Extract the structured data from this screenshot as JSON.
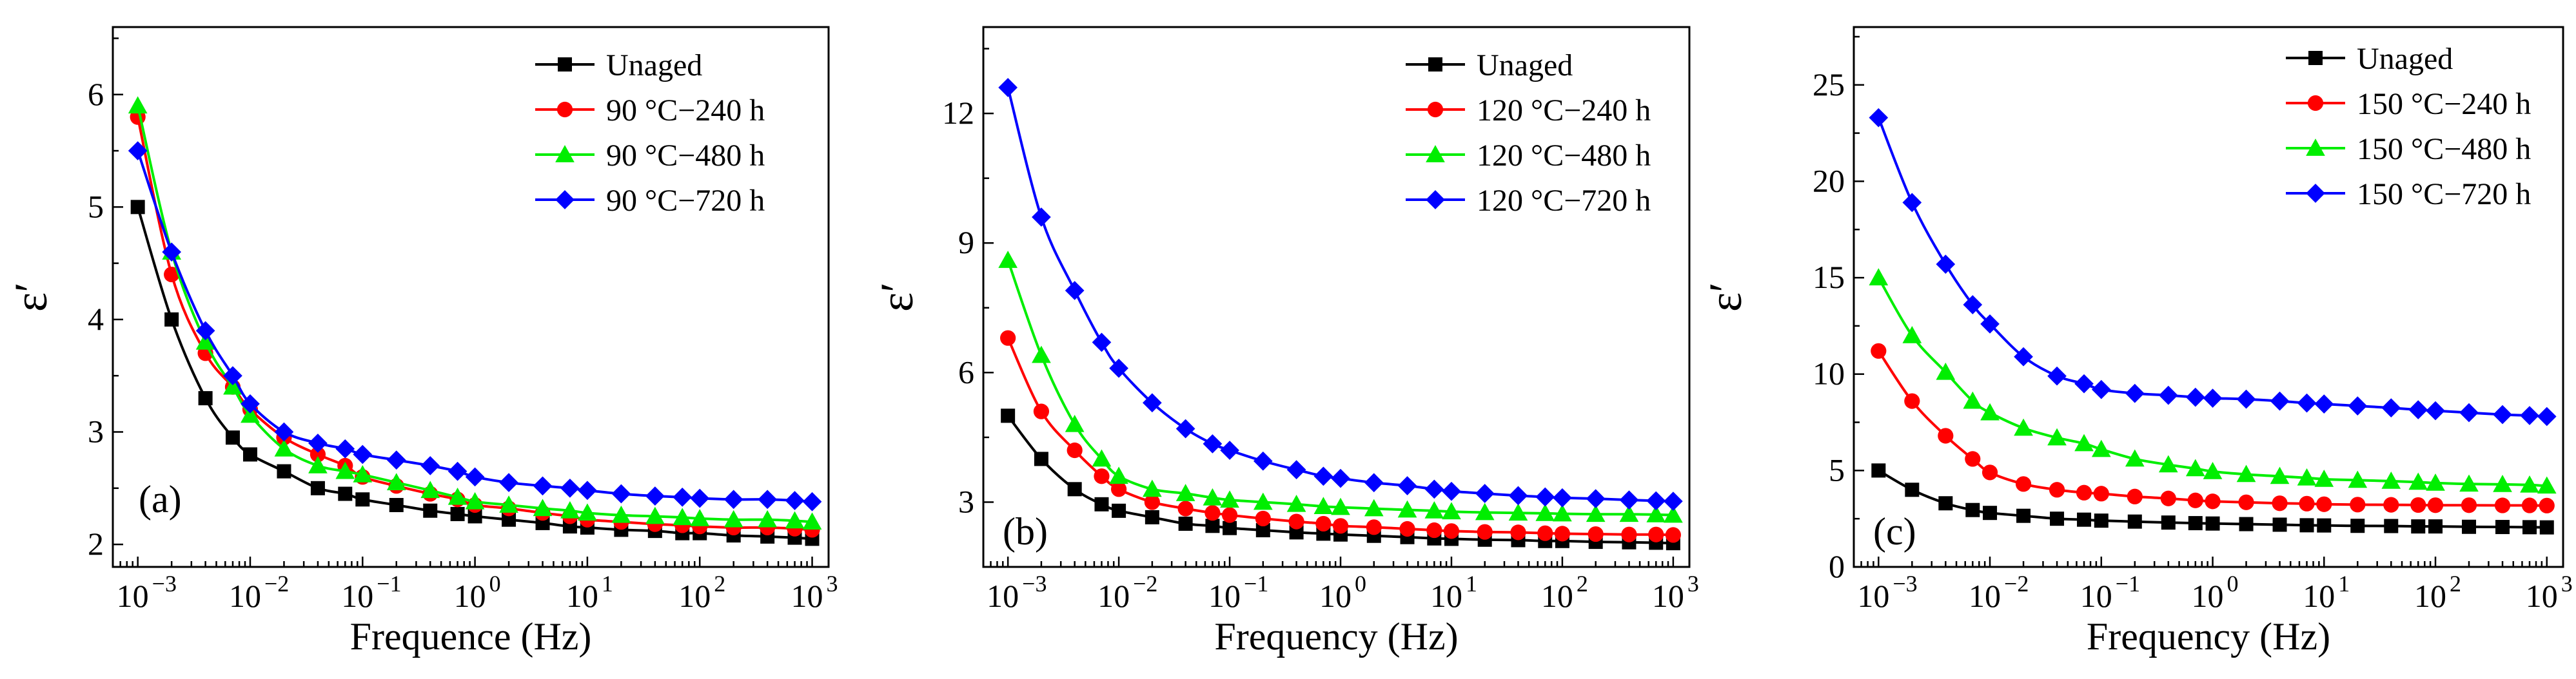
{
  "colors": {
    "Unaged": "#000000",
    "240h": "#ff0000",
    "480h": "#00ee00",
    "720h": "#0000ff",
    "axis": "#000000"
  },
  "markers": [
    "square",
    "circle",
    "triangle",
    "diamond"
  ],
  "chart_data": [
    {
      "type": "line",
      "panel_label": "(a)",
      "xlabel": "Frequence (Hz)",
      "ylabel": "ε′",
      "xscale": "log",
      "xlim": [
        0.0006,
        1400
      ],
      "ylim": [
        1.8,
        6.6
      ],
      "xticks": [
        0.001,
        0.01,
        0.1,
        1,
        10,
        100,
        1000
      ],
      "xtick_labels": [
        "10",
        "10",
        "10",
        "10",
        "10",
        "10",
        "10"
      ],
      "xtick_exponents": [
        "−3",
        "−2",
        "−1",
        "0",
        "1",
        "2",
        "3"
      ],
      "yticks": [
        2,
        3,
        4,
        5,
        6
      ],
      "ytick_labels": [
        "2",
        "3",
        "4",
        "5",
        "6"
      ],
      "legend_position": "top-right",
      "x": [
        0.001,
        0.002,
        0.004,
        0.007,
        0.01,
        0.02,
        0.04,
        0.07,
        0.1,
        0.2,
        0.4,
        0.7,
        1,
        2,
        4,
        7,
        10,
        20,
        40,
        70,
        100,
        200,
        400,
        700,
        1000
      ],
      "series": [
        {
          "name": "Unaged",
          "values": [
            5.0,
            4.0,
            3.3,
            2.95,
            2.8,
            2.65,
            2.5,
            2.45,
            2.4,
            2.35,
            2.3,
            2.27,
            2.25,
            2.22,
            2.19,
            2.16,
            2.15,
            2.13,
            2.12,
            2.1,
            2.1,
            2.08,
            2.07,
            2.06,
            2.05
          ]
        },
        {
          "name": "90 °C−240 h",
          "values": [
            5.8,
            4.4,
            3.7,
            3.4,
            3.2,
            2.95,
            2.8,
            2.7,
            2.6,
            2.52,
            2.45,
            2.4,
            2.35,
            2.32,
            2.28,
            2.25,
            2.22,
            2.2,
            2.18,
            2.17,
            2.16,
            2.15,
            2.15,
            2.14,
            2.13
          ]
        },
        {
          "name": "90 °C−480 h",
          "values": [
            5.9,
            4.6,
            3.8,
            3.4,
            3.15,
            2.85,
            2.7,
            2.65,
            2.62,
            2.55,
            2.48,
            2.42,
            2.38,
            2.35,
            2.32,
            2.3,
            2.28,
            2.26,
            2.25,
            2.24,
            2.23,
            2.22,
            2.22,
            2.21,
            2.2
          ]
        },
        {
          "name": "90 °C−720 h",
          "values": [
            5.5,
            4.6,
            3.9,
            3.5,
            3.25,
            3.0,
            2.9,
            2.85,
            2.8,
            2.75,
            2.7,
            2.65,
            2.6,
            2.55,
            2.52,
            2.5,
            2.48,
            2.45,
            2.43,
            2.42,
            2.41,
            2.4,
            2.4,
            2.39,
            2.38
          ]
        }
      ]
    },
    {
      "type": "line",
      "panel_label": "(b)",
      "xlabel": "Frequency (Hz)",
      "ylabel": "ε′",
      "xscale": "log",
      "xlim": [
        0.0006,
        1400
      ],
      "ylim": [
        1.5,
        14
      ],
      "xticks": [
        0.001,
        0.01,
        0.1,
        1,
        10,
        100,
        1000
      ],
      "xtick_labels": [
        "10",
        "10",
        "10",
        "10",
        "10",
        "10",
        "10"
      ],
      "xtick_exponents": [
        "−3",
        "−2",
        "−1",
        "0",
        "1",
        "2",
        "3"
      ],
      "yticks": [
        3,
        6,
        9,
        12
      ],
      "ytick_labels": [
        "3",
        "6",
        "9",
        "12"
      ],
      "legend_position": "top-right",
      "x": [
        0.001,
        0.002,
        0.004,
        0.007,
        0.01,
        0.02,
        0.04,
        0.07,
        0.1,
        0.2,
        0.4,
        0.7,
        1,
        2,
        4,
        7,
        10,
        20,
        40,
        70,
        100,
        200,
        400,
        700,
        1000
      ],
      "series": [
        {
          "name": "Unaged",
          "values": [
            5.0,
            4.0,
            3.3,
            2.95,
            2.8,
            2.65,
            2.5,
            2.45,
            2.4,
            2.35,
            2.3,
            2.27,
            2.25,
            2.22,
            2.19,
            2.16,
            2.15,
            2.13,
            2.12,
            2.1,
            2.1,
            2.08,
            2.07,
            2.06,
            2.05
          ]
        },
        {
          "name": "120 °C−240 h",
          "values": [
            6.8,
            5.1,
            4.2,
            3.6,
            3.3,
            3.0,
            2.85,
            2.75,
            2.7,
            2.62,
            2.55,
            2.5,
            2.45,
            2.42,
            2.38,
            2.35,
            2.33,
            2.31,
            2.3,
            2.28,
            2.27,
            2.26,
            2.25,
            2.25,
            2.24
          ]
        },
        {
          "name": "120 °C−480 h",
          "values": [
            8.6,
            6.4,
            4.8,
            4.0,
            3.6,
            3.3,
            3.2,
            3.1,
            3.05,
            3.0,
            2.95,
            2.9,
            2.88,
            2.85,
            2.82,
            2.8,
            2.78,
            2.76,
            2.75,
            2.74,
            2.73,
            2.72,
            2.72,
            2.71,
            2.7
          ]
        },
        {
          "name": "120 °C−720 h",
          "values": [
            12.6,
            9.6,
            7.9,
            6.7,
            6.1,
            5.3,
            4.7,
            4.35,
            4.2,
            3.95,
            3.75,
            3.6,
            3.55,
            3.45,
            3.38,
            3.3,
            3.25,
            3.2,
            3.15,
            3.12,
            3.1,
            3.08,
            3.05,
            3.03,
            3.02
          ]
        }
      ]
    },
    {
      "type": "line",
      "panel_label": "(c)",
      "xlabel": "Frequency (Hz)",
      "ylabel": "ε′",
      "xscale": "log",
      "xlim": [
        0.0006,
        1400
      ],
      "ylim": [
        0,
        28
      ],
      "xticks": [
        0.001,
        0.01,
        0.1,
        1,
        10,
        100,
        1000
      ],
      "xtick_labels": [
        "10",
        "10",
        "10",
        "10",
        "10",
        "10",
        "10"
      ],
      "xtick_exponents": [
        "−3",
        "−2",
        "−1",
        "0",
        "1",
        "2",
        "3"
      ],
      "yticks": [
        0,
        5,
        10,
        15,
        20,
        25
      ],
      "ytick_labels": [
        "0",
        "5",
        "10",
        "15",
        "20",
        "25"
      ],
      "legend_position": "top-right",
      "x": [
        0.001,
        0.002,
        0.004,
        0.007,
        0.01,
        0.02,
        0.04,
        0.07,
        0.1,
        0.2,
        0.4,
        0.7,
        1,
        2,
        4,
        7,
        10,
        20,
        40,
        70,
        100,
        200,
        400,
        700,
        1000
      ],
      "series": [
        {
          "name": "Unaged",
          "values": [
            5.0,
            4.0,
            3.3,
            2.95,
            2.8,
            2.65,
            2.5,
            2.45,
            2.4,
            2.35,
            2.3,
            2.27,
            2.25,
            2.22,
            2.19,
            2.16,
            2.15,
            2.13,
            2.12,
            2.1,
            2.1,
            2.08,
            2.07,
            2.06,
            2.05
          ]
        },
        {
          "name": "150 °C−240 h",
          "values": [
            11.2,
            8.6,
            6.8,
            5.6,
            4.9,
            4.3,
            4.0,
            3.85,
            3.8,
            3.65,
            3.55,
            3.45,
            3.4,
            3.35,
            3.3,
            3.28,
            3.25,
            3.23,
            3.22,
            3.21,
            3.2,
            3.2,
            3.19,
            3.19,
            3.18
          ]
        },
        {
          "name": "150 °C−480 h",
          "values": [
            15.0,
            12.0,
            10.1,
            8.6,
            8.0,
            7.2,
            6.7,
            6.4,
            6.1,
            5.6,
            5.3,
            5.1,
            4.95,
            4.8,
            4.7,
            4.62,
            4.55,
            4.5,
            4.45,
            4.4,
            4.35,
            4.3,
            4.28,
            4.25,
            4.2
          ]
        },
        {
          "name": "150 °C−720 h",
          "values": [
            23.3,
            18.9,
            15.7,
            13.6,
            12.6,
            10.9,
            9.9,
            9.5,
            9.2,
            9.0,
            8.9,
            8.8,
            8.75,
            8.7,
            8.6,
            8.5,
            8.45,
            8.35,
            8.25,
            8.15,
            8.1,
            8.0,
            7.9,
            7.85,
            7.8
          ]
        }
      ]
    }
  ]
}
